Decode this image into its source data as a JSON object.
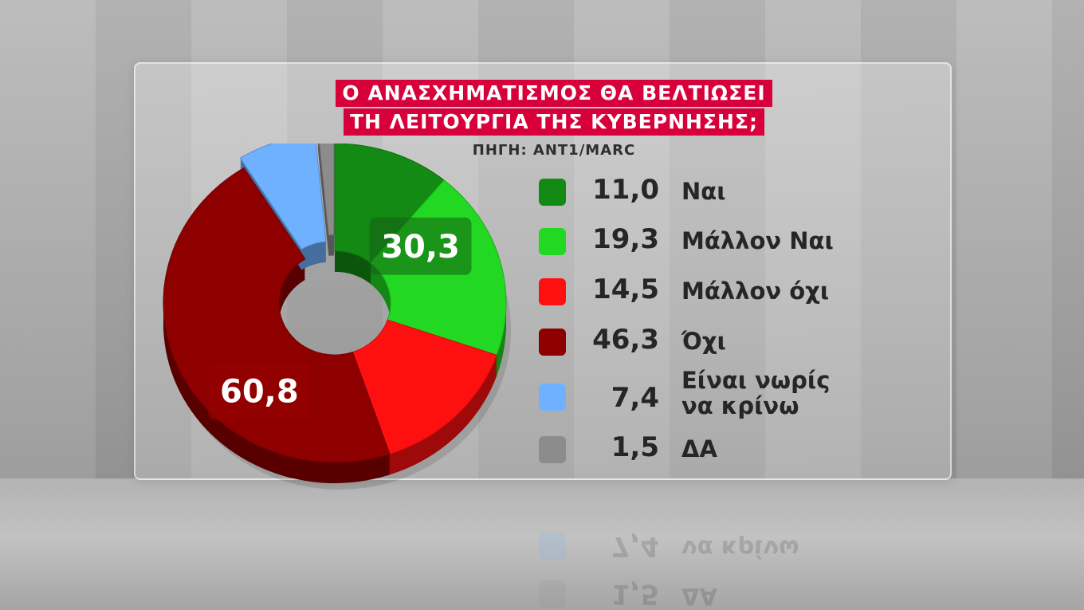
{
  "title_lines": [
    "Ο ΑΝΑΣΧΗΜΑΤΙΣΜΟΣ ΘΑ ΒΕΛΤΙΩΣΕΙ",
    "ΤΗ ΛΕΙΤΟΥΡΓΙΑ ΤΗΣ ΚΥΒΕΡΝΗΣΗΣ;"
  ],
  "source": "ΠΗΓΗ: ANT1/MARC",
  "chart_data": {
    "type": "pie",
    "title": "Ο ΑΝΑΣΧΗΜΑΤΙΣΜΟΣ ΘΑ ΒΕΛΤΙΩΣΕΙ ΤΗ ΛΕΙΤΟΥΡΓΙΑ ΤΗΣ ΚΥΒΕΡΝΗΣΗΣ;",
    "style": "3d-donut",
    "legend_position": "right",
    "categories": [
      "Ναι",
      "Μάλλον Ναι",
      "Μάλλον όχι",
      "Όχι",
      "Είναι νωρίς να κρίνω",
      "ΔΑ"
    ],
    "label_lines": [
      [
        "Ναι"
      ],
      [
        "Μάλλον Ναι"
      ],
      [
        "Μάλλον όχι"
      ],
      [
        "Όχι"
      ],
      [
        "Είναι νωρίς",
        "να κρίνω"
      ],
      [
        "ΔΑ"
      ]
    ],
    "values": [
      11.0,
      19.3,
      14.5,
      46.3,
      7.4,
      1.5
    ],
    "value_labels": [
      "11,0",
      "19,3",
      "14,5",
      "46,3",
      "7,4",
      "1,5"
    ],
    "colors": [
      "#138a13",
      "#22d822",
      "#ff1010",
      "#8e0000",
      "#6fb1ff",
      "#8c8c8c"
    ],
    "group_labels": [
      {
        "text": "30,3",
        "members": [
          "Ναι",
          "Μάλλον Ναι"
        ]
      },
      {
        "text": "60,8",
        "members": [
          "Μάλλον όχι",
          "Όχι"
        ]
      }
    ]
  }
}
